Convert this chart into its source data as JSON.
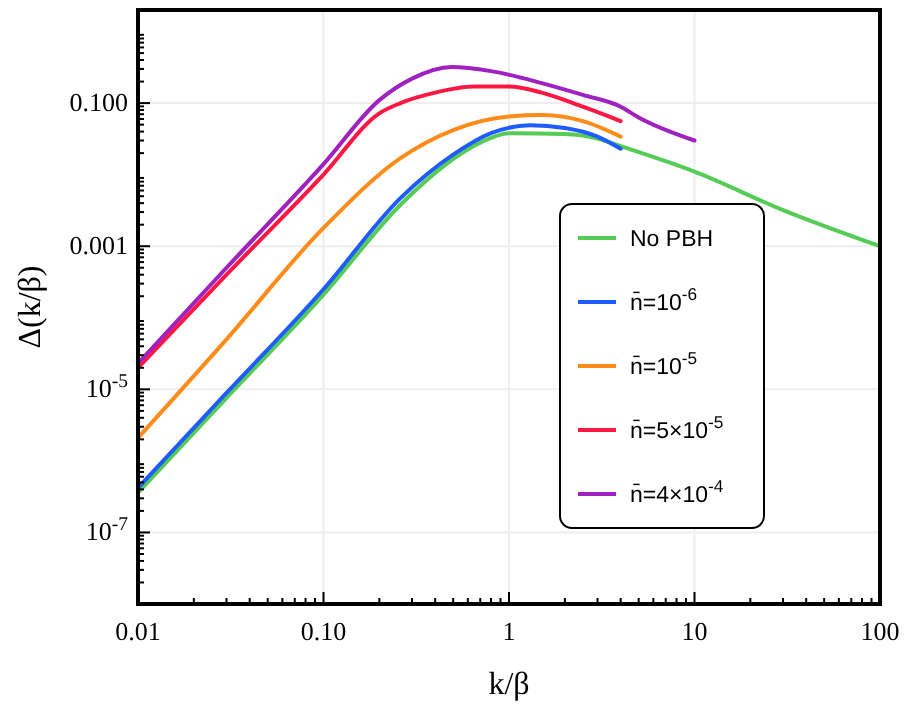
{
  "chart_data": {
    "type": "line",
    "xlabel": "k/β",
    "ylabel": "Δ(k/β)",
    "log": "xy",
    "grid": true,
    "legend": "right",
    "line_style": "solid",
    "xlim": [
      0.01,
      100
    ],
    "xticks": [
      {
        "value": 0.01,
        "label": "0.01"
      },
      {
        "value": 0.1,
        "label": "0.10"
      },
      1,
      10,
      100
    ],
    "ylim": [
      1e-08,
      2
    ],
    "yticks": [
      {
        "value": 1e-07,
        "label": "10$^{-7}$"
      },
      {
        "value": 1e-05,
        "label": "10$^{-5}$"
      },
      {
        "value": 0.001,
        "label": "0.001"
      },
      {
        "value": 0.1,
        "label": "0.100"
      }
    ],
    "series": [
      {
        "name": "No PBH",
        "color": "#55cc55",
        "x": [
          0.01,
          0.03,
          0.1,
          0.26,
          0.54,
          0.7,
          1,
          2,
          3,
          4,
          10,
          30,
          100
        ],
        "values": [
          3.6e-07,
          7.6e-06,
          0.00021,
          0.0038,
          0.019,
          0.028,
          0.038,
          0.037,
          0.032,
          0.025,
          0.011,
          0.0032,
          0.001
        ]
      },
      {
        "name": "n̄=10$^{-6}$",
        "color": "#1f5cff",
        "x": [
          0.01,
          0.03,
          0.1,
          0.26,
          0.5,
          0.8,
          1.3,
          2,
          3,
          4
        ],
        "values": [
          4.2e-07,
          8.9e-06,
          0.00025,
          0.0047,
          0.019,
          0.038,
          0.049,
          0.045,
          0.034,
          0.023
        ]
      },
      {
        "name": "n̄=10$^{-5}$",
        "color": "#ff8c1a",
        "x": [
          0.01,
          0.03,
          0.1,
          0.26,
          0.5,
          1,
          1.5,
          2.5,
          4
        ],
        "values": [
          2.1e-06,
          5e-05,
          0.0018,
          0.017,
          0.042,
          0.065,
          0.068,
          0.056,
          0.034
        ]
      },
      {
        "name": "n̄=5×10$^{-5}$",
        "color": "#ff1744",
        "x": [
          0.01,
          0.03,
          0.1,
          0.2,
          0.26,
          0.4,
          0.65,
          1,
          1.5,
          2.5,
          4
        ],
        "values": [
          2e-05,
          0.0004,
          0.01,
          0.072,
          0.1,
          0.14,
          0.17,
          0.17,
          0.14,
          0.089,
          0.056
        ]
      },
      {
        "name": "n̄=4×10$^{-4}$",
        "color": "#a020c0",
        "x": [
          0.01,
          0.03,
          0.1,
          0.2,
          0.3,
          0.49,
          0.8,
          1.5,
          2.5,
          4,
          5,
          10
        ],
        "values": [
          2.3e-05,
          0.0005,
          0.014,
          0.11,
          0.22,
          0.32,
          0.28,
          0.19,
          0.13,
          0.089,
          0.063,
          0.03
        ]
      }
    ]
  }
}
